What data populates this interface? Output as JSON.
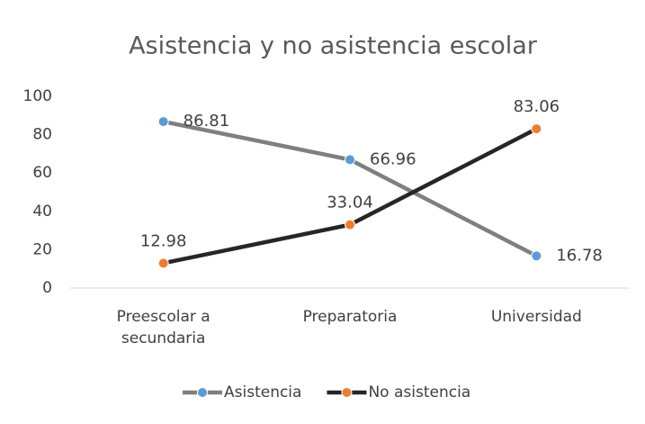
{
  "chart_data": {
    "type": "line",
    "title": "Asistencia y no asistencia escolar",
    "categories": [
      "Preescolar a secundaria",
      "Preparatoria",
      "Universidad"
    ],
    "series": [
      {
        "name": "Asistencia",
        "color": "#7f7f7f",
        "marker_color": "#5b9bd5",
        "values": [
          86.81,
          66.96,
          16.78
        ]
      },
      {
        "name": "No asistencia",
        "color": "#262626",
        "marker_color": "#ed7d31",
        "values": [
          12.98,
          33.04,
          83.06
        ]
      }
    ],
    "ylim": [
      0,
      100
    ],
    "yticks": [
      0,
      20,
      40,
      60,
      80,
      100
    ],
    "grid": false,
    "legend": "bottom"
  }
}
